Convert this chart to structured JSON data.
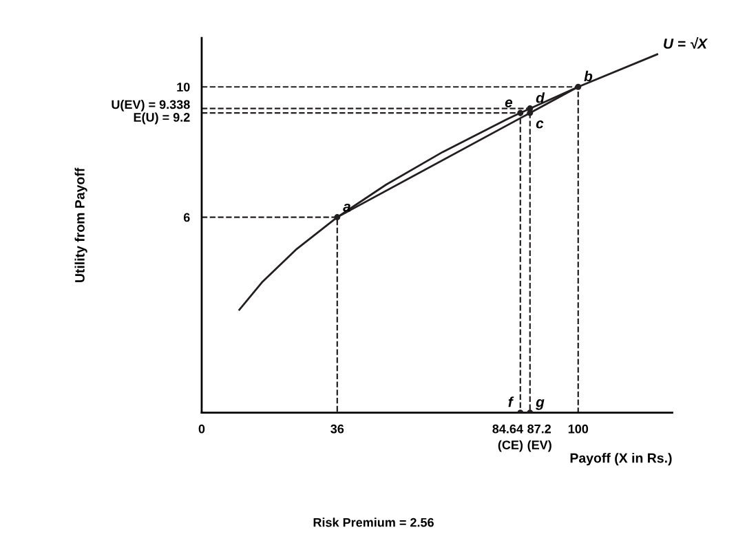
{
  "chart_data": {
    "type": "line",
    "xlabel": "Payoff (X in Rs.)",
    "ylabel": "Utility from Payoff",
    "xlim": [
      0,
      125
    ],
    "ylim": [
      0,
      11.5
    ],
    "xticks": [
      {
        "value": 0,
        "label": "0"
      },
      36,
      100
    ],
    "yticks": [
      6,
      {
        "value": 9.2,
        "label": "E(U) = 9.2"
      },
      {
        "value": 9.338,
        "label": "U(EV) = 9.338"
      },
      10
    ],
    "grid": false,
    "series": [
      {
        "type": "line",
        "color": "#231f20",
        "line_style": "solid",
        "x": [
          10,
          16,
          25,
          36,
          49,
          64,
          81,
          84.64,
          100,
          121
        ],
        "values": [
          3.16,
          4,
          5,
          6,
          7,
          8,
          9,
          9.2,
          10,
          11
        ]
      },
      {
        "type": "line",
        "color": "#231f20",
        "line_style": "solid",
        "x": [
          36,
          100
        ],
        "values": [
          6,
          10
        ]
      },
      {
        "type": "line",
        "color": "#231f20",
        "line_style": "dashed",
        "x": [
          0,
          36,
          36
        ],
        "values": [
          6,
          6,
          0
        ]
      },
      {
        "type": "line",
        "color": "#231f20",
        "line_style": "dashed",
        "x": [
          0,
          100,
          100
        ],
        "values": [
          10,
          10,
          0
        ]
      },
      {
        "type": "line",
        "color": "#231f20",
        "line_style": "dashed",
        "x": [
          0,
          87.2,
          87.2
        ],
        "values": [
          9.338,
          9.338,
          0
        ]
      },
      {
        "type": "line",
        "color": "#231f20",
        "line_style": "dashed",
        "x": [
          0,
          84.64,
          84.64
        ],
        "values": [
          9.2,
          9.2,
          0
        ]
      },
      {
        "type": "scatter",
        "color": "#231f20",
        "marker": "circle",
        "x": [
          36,
          100,
          87.2,
          87.2,
          84.64,
          84.64,
          87.2
        ],
        "values": [
          6,
          10,
          9.2,
          9.338,
          9.2,
          0,
          0
        ]
      }
    ],
    "annotations": [
      {
        "text": "a",
        "x": 36,
        "y": 6
      },
      {
        "text": "b",
        "x": 100,
        "y": 10
      },
      {
        "text": "c",
        "x": 87.2,
        "y": 9.2
      },
      {
        "text": "d",
        "x": 87.2,
        "y": 9.338
      },
      {
        "text": "e",
        "x": 84.64,
        "y": 9.2
      },
      {
        "text": "f",
        "x": 84.64,
        "y": 0
      },
      {
        "text": "g",
        "x": 87.2,
        "y": 0
      },
      {
        "text": "84.64\n(CE)",
        "x": 84.64,
        "y": 0
      },
      {
        "text": "87.2\n(EV)",
        "x": 87.2,
        "y": 0
      },
      {
        "text": "U = √X",
        "x": 121,
        "y": 11
      },
      "Risk Premium = 2.56"
    ]
  }
}
